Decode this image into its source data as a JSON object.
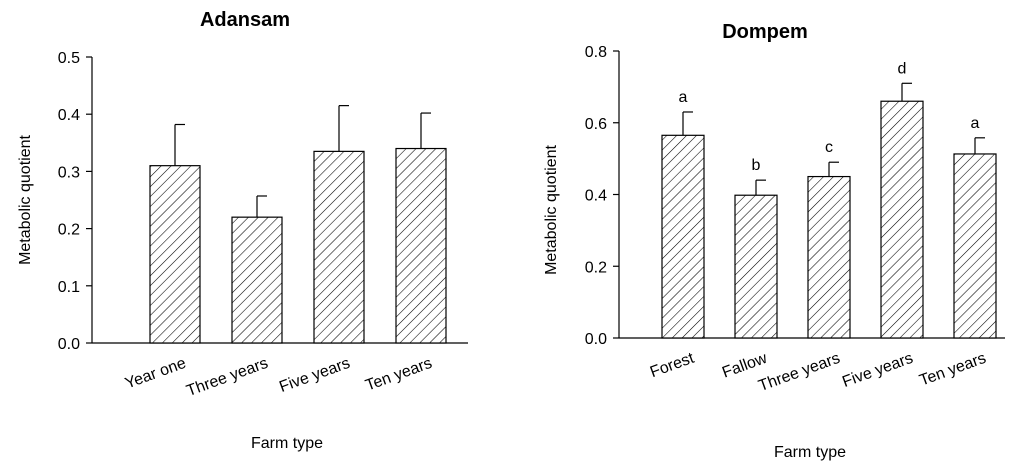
{
  "chart_data": [
    {
      "type": "bar",
      "title": "Adansam",
      "xlabel": "Farm type",
      "ylabel": "Metabolic quotient",
      "categories": [
        "Year one",
        "Three years",
        "Five years",
        "Ten years"
      ],
      "values": [
        0.31,
        0.22,
        0.335,
        0.34
      ],
      "errors": [
        0.072,
        0.037,
        0.08,
        0.062
      ],
      "significance_labels": [],
      "ylim": [
        0,
        0.5
      ],
      "yticks": [
        "0.0",
        "0.1",
        "0.2",
        "0.3",
        "0.4",
        "0.5"
      ],
      "grid": false,
      "bar_fill": "diagonal-hatch"
    },
    {
      "type": "bar",
      "title": "Dompem",
      "xlabel": "Farm type",
      "ylabel": "Metabolic quotient",
      "categories": [
        "Forest",
        "Fallow",
        "Three years",
        "Five years",
        "Ten years"
      ],
      "values": [
        0.565,
        0.398,
        0.45,
        0.66,
        0.513
      ],
      "errors": [
        0.065,
        0.042,
        0.04,
        0.05,
        0.045
      ],
      "significance_labels": [
        "a",
        "b",
        "c",
        "d",
        "a"
      ],
      "ylim": [
        0,
        0.8
      ],
      "yticks": [
        "0.0",
        "0.2",
        "0.4",
        "0.6",
        "0.8"
      ],
      "grid": false,
      "bar_fill": "diagonal-hatch"
    }
  ]
}
